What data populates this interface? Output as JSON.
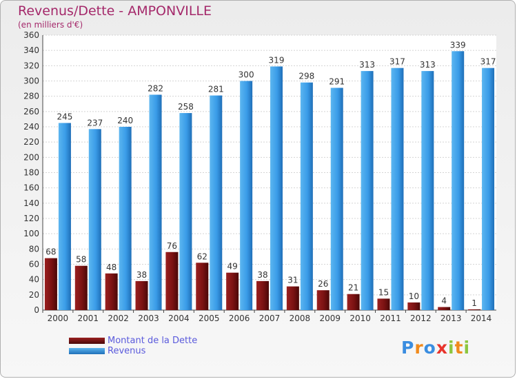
{
  "title": "Revenus/Dette - AMPONVILLE",
  "subtitle": "(en milliers d'€)",
  "logo": {
    "letters": [
      "P",
      "r",
      "o",
      "x",
      "i",
      "t",
      "i"
    ],
    "colors": [
      "#3a8de0",
      "#f08a1c",
      "#3a8de0",
      "#e8342c",
      "#8cc63f",
      "#f08a1c",
      "#8cc63f"
    ]
  },
  "colors": {
    "dette": "#7a1212",
    "revenus": "#3a9ce8",
    "title": "#a4286a",
    "legend_text": "#5a5adc"
  },
  "chart_data": {
    "type": "bar",
    "categories": [
      "2000",
      "2001",
      "2002",
      "2003",
      "2004",
      "2005",
      "2006",
      "2007",
      "2008",
      "2009",
      "2010",
      "2011",
      "2012",
      "2013",
      "2014"
    ],
    "series": [
      {
        "name": "Montant de la Dette",
        "values": [
          68,
          58,
          48,
          38,
          76,
          62,
          49,
          38,
          31,
          26,
          21,
          15,
          10,
          4,
          1
        ]
      },
      {
        "name": "Revenus",
        "values": [
          245,
          237,
          240,
          282,
          258,
          281,
          300,
          319,
          298,
          291,
          313,
          317,
          313,
          339,
          317
        ]
      }
    ],
    "title": "Revenus/Dette - AMPONVILLE",
    "subtitle": "(en milliers d'€)",
    "ylim": [
      0,
      360
    ],
    "yticks": [
      0,
      20,
      40,
      60,
      80,
      100,
      120,
      140,
      160,
      180,
      200,
      220,
      240,
      260,
      280,
      300,
      320,
      340,
      360
    ],
    "grid": true,
    "legend": "bottom-left"
  }
}
